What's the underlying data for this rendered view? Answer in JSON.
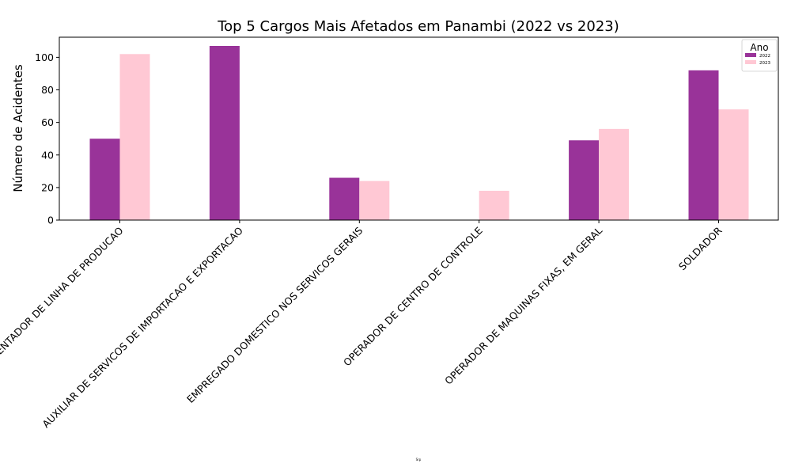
{
  "chart_data": {
    "type": "bar",
    "title": "Top 5 Cargos Mais Afetados em Panambi (2022 vs 2023)",
    "xlabel": "Srp",
    "ylabel": "Número de Acidentes",
    "categories": [
      "ALIMENTADOR DE LINHA DE PRODUCAO",
      "AUXILIAR DE SERVICOS DE IMPORTACAO E EXPORTACAO",
      "EMPREGADO DOMESTICO NOS SERVICOS GERAIS",
      "OPERADOR DE CENTRO DE CONTROLE",
      "OPERADOR DE MAQUINAS FIXAS, EM GERAL",
      "SOLDADOR"
    ],
    "series": [
      {
        "name": "2022",
        "color": "#993399",
        "values": [
          50,
          107,
          26,
          0,
          49,
          92
        ]
      },
      {
        "name": "2023",
        "color": "#ffc8d4",
        "values": [
          102,
          0,
          24,
          18,
          56,
          68
        ]
      }
    ],
    "ylim": [
      0,
      112.35
    ],
    "yticks": [
      0,
      20,
      40,
      60,
      80,
      100
    ],
    "legend": {
      "title": "Ano",
      "placement": "top-right"
    },
    "grid": false
  }
}
